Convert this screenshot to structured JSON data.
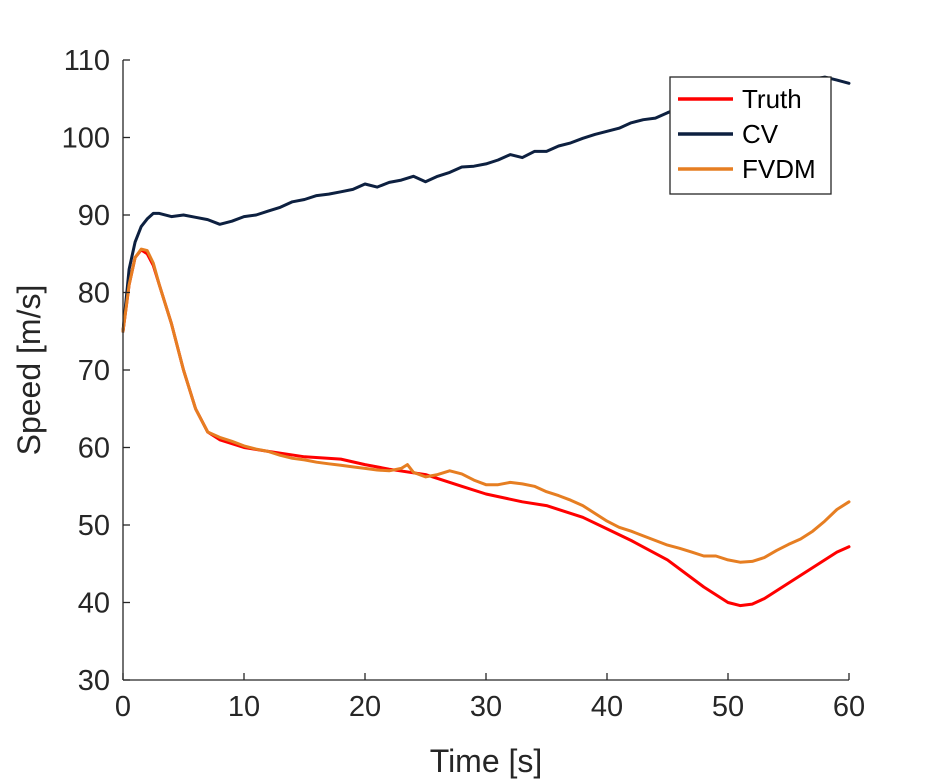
{
  "chart_data": {
    "type": "line",
    "title": "",
    "xlabel": "Time [s]",
    "ylabel": "Speed [m/s]",
    "xlim": [
      0,
      60
    ],
    "ylim": [
      30,
      110
    ],
    "xticks": [
      0,
      10,
      20,
      30,
      40,
      50,
      60
    ],
    "yticks": [
      30,
      40,
      50,
      60,
      70,
      80,
      90,
      100,
      110
    ],
    "grid": false,
    "legend_position": "top-right",
    "series": [
      {
        "name": "Truth",
        "color": "#ff0000",
        "x": [
          0,
          0.5,
          1,
          1.5,
          2,
          2.5,
          3,
          4,
          5,
          6,
          7,
          8,
          10,
          12,
          15,
          18,
          20,
          22,
          25,
          28,
          30,
          33,
          35,
          38,
          40,
          42,
          45,
          48,
          50,
          51,
          52,
          53,
          55,
          57,
          59,
          60
        ],
        "y": [
          75,
          81,
          84.5,
          85.5,
          85,
          83.5,
          81,
          76,
          70,
          65,
          62,
          61,
          60,
          59.5,
          58.8,
          58.5,
          57.8,
          57.2,
          56.5,
          55,
          54,
          53,
          52.5,
          51,
          49.5,
          48,
          45.5,
          42,
          40,
          39.6,
          39.8,
          40.5,
          42.5,
          44.5,
          46.5,
          47.2
        ]
      },
      {
        "name": "CV",
        "color": "#0d2040",
        "x": [
          0,
          0.5,
          1,
          1.5,
          2,
          2.5,
          3,
          4,
          5,
          6,
          7,
          8,
          9,
          10,
          11,
          12,
          13,
          14,
          15,
          16,
          17,
          18,
          19,
          20,
          21,
          22,
          23,
          24,
          25,
          26,
          27,
          28,
          29,
          30,
          31,
          32,
          33,
          34,
          35,
          36,
          37,
          38,
          39,
          40,
          41,
          42,
          43,
          44,
          45,
          46,
          47,
          48,
          49,
          50,
          51,
          52,
          53,
          54,
          55,
          56,
          57,
          58,
          59,
          60
        ],
        "y": [
          75,
          83,
          86.5,
          88.5,
          89.5,
          90.2,
          90.2,
          89.8,
          90,
          89.7,
          89.4,
          88.8,
          89.2,
          89.8,
          90,
          90.5,
          91,
          91.7,
          92,
          92.5,
          92.7,
          93,
          93.3,
          94,
          93.6,
          94.2,
          94.5,
          95,
          94.3,
          95,
          95.5,
          96.2,
          96.3,
          96.6,
          97.1,
          97.8,
          97.4,
          98.2,
          98.2,
          98.9,
          99.3,
          99.9,
          100.4,
          100.8,
          101.2,
          101.9,
          102.3,
          102.5,
          103.2,
          103.8,
          104,
          104.2,
          104.2,
          104.8,
          105.3,
          105.8,
          106.2,
          106.8,
          107,
          107.3,
          107.5,
          107.8,
          107.4,
          107
        ]
      },
      {
        "name": "FVDM",
        "color": "#e67e22",
        "x": [
          0,
          0.5,
          1,
          1.5,
          2,
          2.5,
          3,
          4,
          5,
          6,
          7,
          8,
          9,
          10,
          11,
          12,
          13,
          14,
          15,
          16,
          17,
          18,
          19,
          20,
          21,
          22,
          23,
          23.5,
          24,
          25,
          26,
          27,
          28,
          29,
          30,
          31,
          32,
          33,
          34,
          35,
          36,
          37,
          38,
          39,
          40,
          41,
          42,
          43,
          44,
          45,
          46,
          47,
          48,
          49,
          50,
          51,
          52,
          53,
          54,
          55,
          56,
          57,
          58,
          59,
          60
        ],
        "y": [
          75,
          81,
          84.5,
          85.6,
          85.4,
          83.8,
          81,
          76,
          70,
          65,
          62,
          61.3,
          60.8,
          60.2,
          59.8,
          59.5,
          59,
          58.6,
          58.4,
          58.1,
          57.9,
          57.7,
          57.5,
          57.3,
          57.1,
          57,
          57.3,
          57.8,
          56.8,
          56.2,
          56.5,
          57,
          56.6,
          55.8,
          55.2,
          55.2,
          55.5,
          55.3,
          55,
          54.3,
          53.8,
          53.2,
          52.5,
          51.5,
          50.5,
          49.7,
          49.2,
          48.6,
          48,
          47.4,
          47,
          46.5,
          46,
          46,
          45.5,
          45.2,
          45.3,
          45.8,
          46.7,
          47.5,
          48.2,
          49.2,
          50.5,
          52,
          53
        ]
      }
    ]
  }
}
